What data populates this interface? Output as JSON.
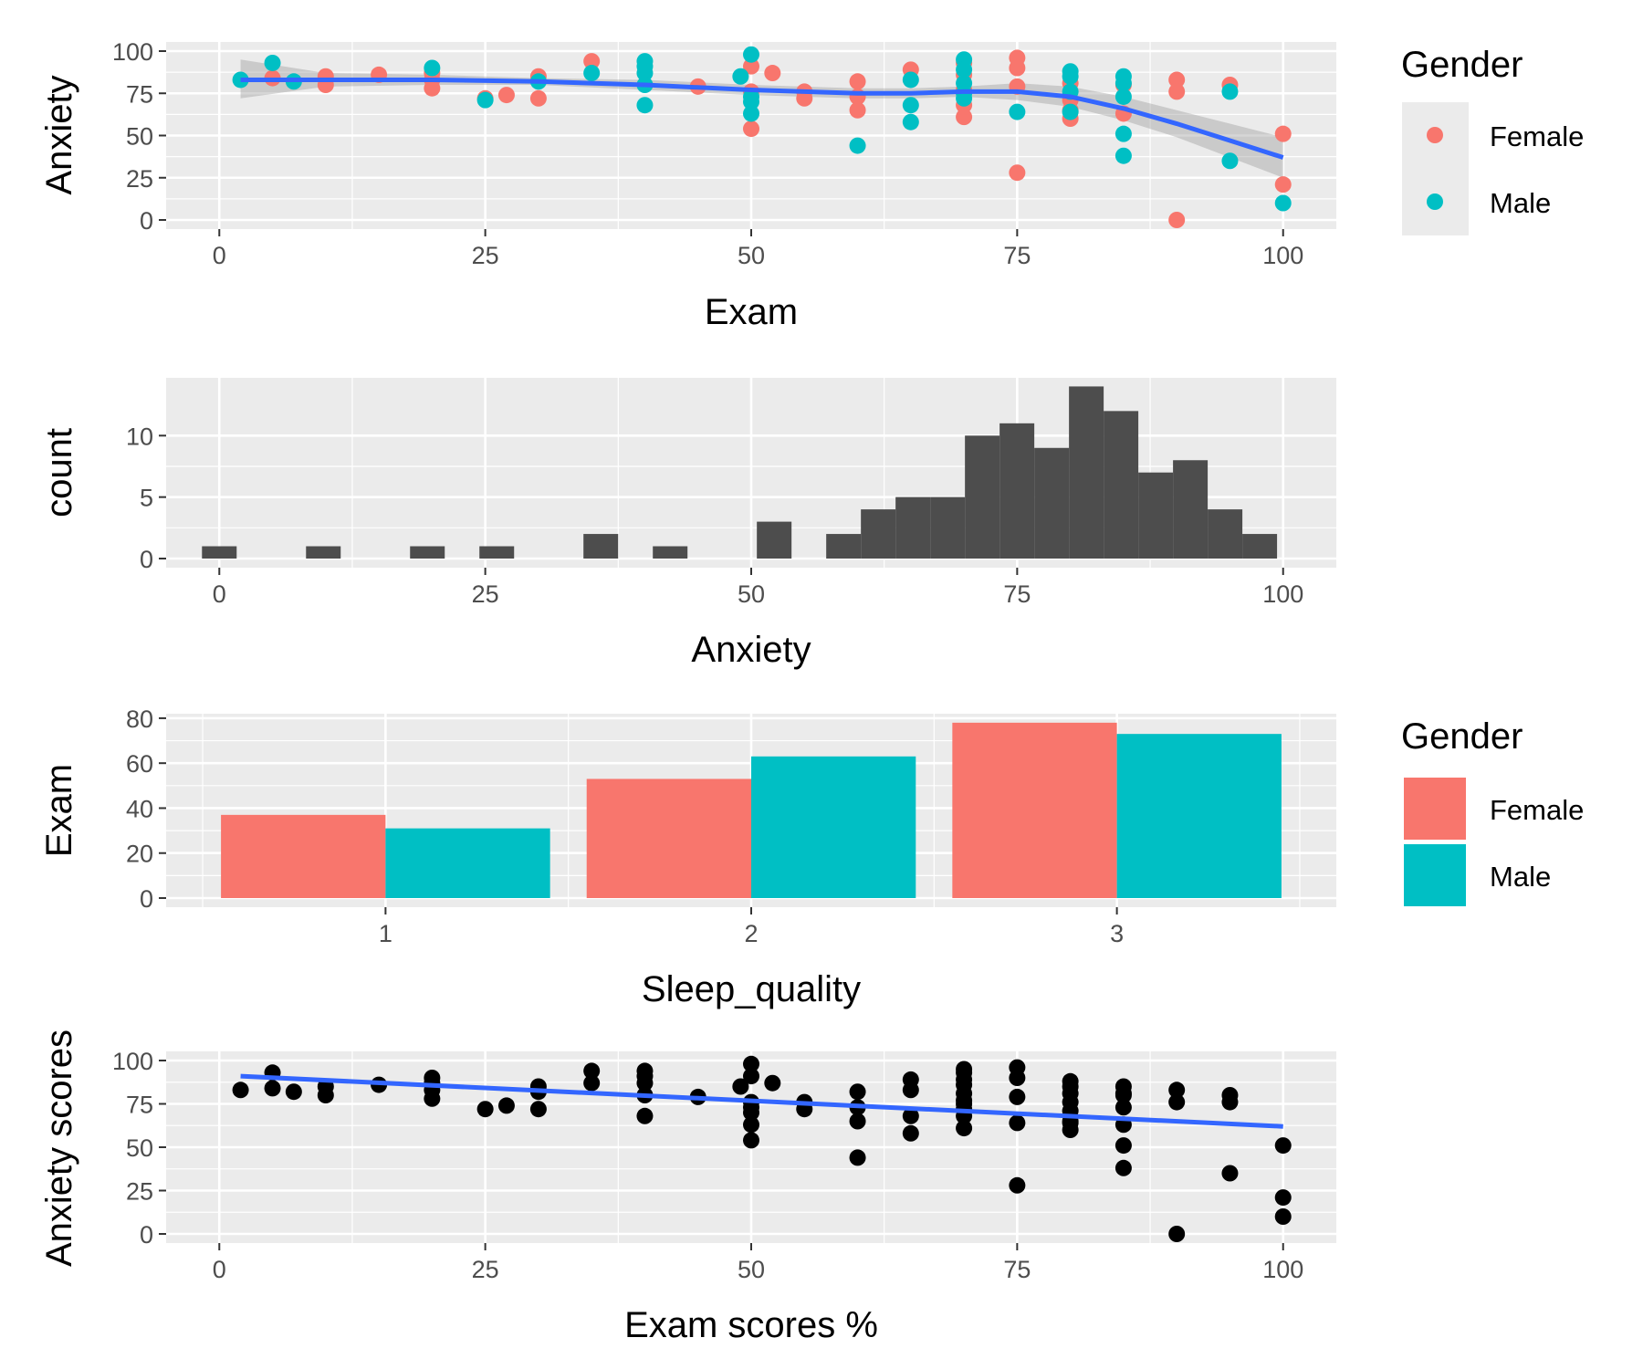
{
  "colors": {
    "female": "#F8766D",
    "male": "#00BFC4",
    "smooth": "#3366FF",
    "bar_dark": "#4D4D4D",
    "point_black": "#000000",
    "panel_bg": "#EBEBEB",
    "grid": "#FFFFFF",
    "ribbon": "#999999"
  },
  "legend_gender_points": {
    "title": "Gender",
    "items": [
      {
        "label": "Female",
        "color": "#F8766D"
      },
      {
        "label": "Male",
        "color": "#00BFC4"
      }
    ]
  },
  "legend_gender_bars": {
    "title": "Gender",
    "items": [
      {
        "label": "Female",
        "color": "#F8766D"
      },
      {
        "label": "Male",
        "color": "#00BFC4"
      }
    ]
  },
  "chart_data": [
    {
      "type": "scatter",
      "title": "",
      "xlabel": "Exam",
      "ylabel": "Anxiety",
      "xlim": [
        -5,
        105
      ],
      "ylim": [
        0,
        100
      ],
      "x_ticks": [
        0,
        25,
        50,
        75,
        100
      ],
      "y_ticks": [
        0,
        25,
        50,
        75,
        100
      ],
      "grid": true,
      "legend": "right",
      "series": [
        {
          "name": "Female",
          "color": "#F8766D",
          "points": [
            [
              5,
              84
            ],
            [
              10,
              85
            ],
            [
              10,
              80
            ],
            [
              15,
              86
            ],
            [
              20,
              87
            ],
            [
              20,
              83
            ],
            [
              20,
              78
            ],
            [
              25,
              72
            ],
            [
              27,
              74
            ],
            [
              30,
              85
            ],
            [
              30,
              72
            ],
            [
              35,
              94
            ],
            [
              45,
              79
            ],
            [
              50,
              91
            ],
            [
              50,
              76
            ],
            [
              50,
              54
            ],
            [
              52,
              87
            ],
            [
              55,
              76
            ],
            [
              55,
              72
            ],
            [
              60,
              82
            ],
            [
              60,
              73
            ],
            [
              60,
              65
            ],
            [
              65,
              89
            ],
            [
              70,
              93
            ],
            [
              70,
              86
            ],
            [
              70,
              77
            ],
            [
              70,
              68
            ],
            [
              70,
              61
            ],
            [
              75,
              96
            ],
            [
              75,
              90
            ],
            [
              75,
              79
            ],
            [
              75,
              28
            ],
            [
              80,
              81
            ],
            [
              80,
              71
            ],
            [
              80,
              65
            ],
            [
              80,
              60
            ],
            [
              85,
              80
            ],
            [
              85,
              63
            ],
            [
              90,
              83
            ],
            [
              90,
              76
            ],
            [
              90,
              0
            ],
            [
              95,
              80
            ],
            [
              100,
              51
            ],
            [
              100,
              21
            ]
          ]
        },
        {
          "name": "Male",
          "color": "#00BFC4",
          "points": [
            [
              2,
              83
            ],
            [
              5,
              93
            ],
            [
              7,
              82
            ],
            [
              20,
              90
            ],
            [
              25,
              71
            ],
            [
              30,
              82
            ],
            [
              35,
              87
            ],
            [
              40,
              94
            ],
            [
              40,
              91
            ],
            [
              40,
              87
            ],
            [
              40,
              80
            ],
            [
              40,
              68
            ],
            [
              49,
              85
            ],
            [
              50,
              98
            ],
            [
              50,
              73
            ],
            [
              50,
              70
            ],
            [
              50,
              63
            ],
            [
              60,
              44
            ],
            [
              65,
              83
            ],
            [
              65,
              68
            ],
            [
              65,
              58
            ],
            [
              70,
              95
            ],
            [
              70,
              89
            ],
            [
              70,
              81
            ],
            [
              70,
              75
            ],
            [
              70,
              72
            ],
            [
              75,
              64
            ],
            [
              80,
              88
            ],
            [
              80,
              85
            ],
            [
              80,
              76
            ],
            [
              80,
              64
            ],
            [
              85,
              85
            ],
            [
              85,
              81
            ],
            [
              85,
              73
            ],
            [
              85,
              51
            ],
            [
              85,
              38
            ],
            [
              95,
              76
            ],
            [
              95,
              35
            ],
            [
              100,
              10
            ]
          ]
        }
      ],
      "smooth": {
        "type": "loess",
        "color": "#3366FF",
        "x": [
          2,
          10,
          20,
          30,
          40,
          50,
          55,
          60,
          65,
          70,
          75,
          80,
          85,
          90,
          95,
          100
        ],
        "y": [
          83,
          83,
          83,
          82,
          80,
          77,
          76,
          75,
          75,
          76,
          76,
          73,
          66,
          57,
          47,
          37
        ],
        "se_lower": [
          72,
          79,
          80,
          80,
          77,
          74,
          73,
          72,
          72,
          73,
          71,
          67,
          59,
          49,
          37,
          25
        ],
        "se_upper": [
          95,
          87,
          86,
          84,
          83,
          80,
          79,
          78,
          78,
          79,
          81,
          79,
          73,
          65,
          57,
          49
        ]
      }
    },
    {
      "type": "bar",
      "subtype": "histogram",
      "title": "",
      "xlabel": "Anxiety",
      "ylabel": "count",
      "xlim": [
        -5,
        105
      ],
      "ylim": [
        0,
        14
      ],
      "x_ticks": [
        0,
        25,
        50,
        75,
        100
      ],
      "y_ticks": [
        0,
        5,
        10
      ],
      "grid": true,
      "bin_width": 3.26,
      "bin_centers": [
        0,
        3.26,
        6.52,
        9.78,
        13.04,
        16.3,
        19.56,
        22.82,
        26.08,
        29.34,
        32.6,
        35.86,
        39.12,
        42.38,
        45.64,
        48.9,
        52.16,
        55.42,
        58.68,
        61.94,
        65.2,
        68.46,
        71.72,
        74.98,
        78.24,
        81.5,
        84.76,
        88.02,
        91.28,
        94.54,
        97.8
      ],
      "counts": [
        1,
        0,
        0,
        1,
        0,
        0,
        1,
        0,
        1,
        0,
        0,
        2,
        0,
        1,
        0,
        0,
        3,
        0,
        2,
        4,
        5,
        5,
        10,
        11,
        9,
        14,
        12,
        7,
        8,
        4,
        2
      ]
    },
    {
      "type": "bar",
      "title": "",
      "xlabel": "Sleep_quality",
      "ylabel": "Exam",
      "categories": [
        "1",
        "2",
        "3"
      ],
      "ylim": [
        0,
        80
      ],
      "y_ticks": [
        0,
        20,
        40,
        60,
        80
      ],
      "grid": true,
      "legend": "right",
      "series": [
        {
          "name": "Female",
          "color": "#F8766D",
          "values": [
            37,
            53,
            78
          ]
        },
        {
          "name": "Male",
          "color": "#00BFC4",
          "values": [
            31,
            63,
            73
          ]
        }
      ]
    },
    {
      "type": "scatter",
      "title": "",
      "xlabel": "Exam scores %",
      "ylabel": "Anxiety scores",
      "xlim": [
        -5,
        105
      ],
      "ylim": [
        0,
        100
      ],
      "x_ticks": [
        0,
        25,
        50,
        75,
        100
      ],
      "y_ticks": [
        0,
        25,
        50,
        75,
        100
      ],
      "grid": true,
      "color": "#000000",
      "points": [
        [
          2,
          83
        ],
        [
          5,
          84
        ],
        [
          5,
          93
        ],
        [
          7,
          82
        ],
        [
          10,
          85
        ],
        [
          10,
          80
        ],
        [
          15,
          86
        ],
        [
          20,
          90
        ],
        [
          20,
          87
        ],
        [
          20,
          83
        ],
        [
          20,
          78
        ],
        [
          25,
          72
        ],
        [
          27,
          74
        ],
        [
          30,
          85
        ],
        [
          30,
          82
        ],
        [
          30,
          72
        ],
        [
          35,
          94
        ],
        [
          35,
          87
        ],
        [
          40,
          94
        ],
        [
          40,
          91
        ],
        [
          40,
          87
        ],
        [
          40,
          80
        ],
        [
          40,
          68
        ],
        [
          45,
          79
        ],
        [
          49,
          85
        ],
        [
          50,
          98
        ],
        [
          50,
          91
        ],
        [
          50,
          76
        ],
        [
          50,
          73
        ],
        [
          50,
          70
        ],
        [
          50,
          63
        ],
        [
          50,
          54
        ],
        [
          52,
          87
        ],
        [
          55,
          76
        ],
        [
          55,
          72
        ],
        [
          60,
          82
        ],
        [
          60,
          73
        ],
        [
          60,
          65
        ],
        [
          60,
          44
        ],
        [
          65,
          89
        ],
        [
          65,
          83
        ],
        [
          65,
          68
        ],
        [
          65,
          58
        ],
        [
          70,
          95
        ],
        [
          70,
          93
        ],
        [
          70,
          89
        ],
        [
          70,
          86
        ],
        [
          70,
          81
        ],
        [
          70,
          77
        ],
        [
          70,
          75
        ],
        [
          70,
          72
        ],
        [
          70,
          68
        ],
        [
          70,
          61
        ],
        [
          75,
          96
        ],
        [
          75,
          90
        ],
        [
          75,
          79
        ],
        [
          75,
          64
        ],
        [
          75,
          28
        ],
        [
          80,
          88
        ],
        [
          80,
          85
        ],
        [
          80,
          81
        ],
        [
          80,
          76
        ],
        [
          80,
          71
        ],
        [
          80,
          65
        ],
        [
          80,
          64
        ],
        [
          80,
          60
        ],
        [
          85,
          85
        ],
        [
          85,
          81
        ],
        [
          85,
          80
        ],
        [
          85,
          73
        ],
        [
          85,
          63
        ],
        [
          85,
          51
        ],
        [
          85,
          38
        ],
        [
          90,
          83
        ],
        [
          90,
          76
        ],
        [
          90,
          0
        ],
        [
          95,
          80
        ],
        [
          95,
          76
        ],
        [
          95,
          35
        ],
        [
          100,
          51
        ],
        [
          100,
          21
        ],
        [
          100,
          10
        ]
      ],
      "fit": {
        "type": "lm",
        "color": "#3366FF",
        "x": [
          2,
          100
        ],
        "y": [
          91,
          62
        ]
      }
    }
  ]
}
